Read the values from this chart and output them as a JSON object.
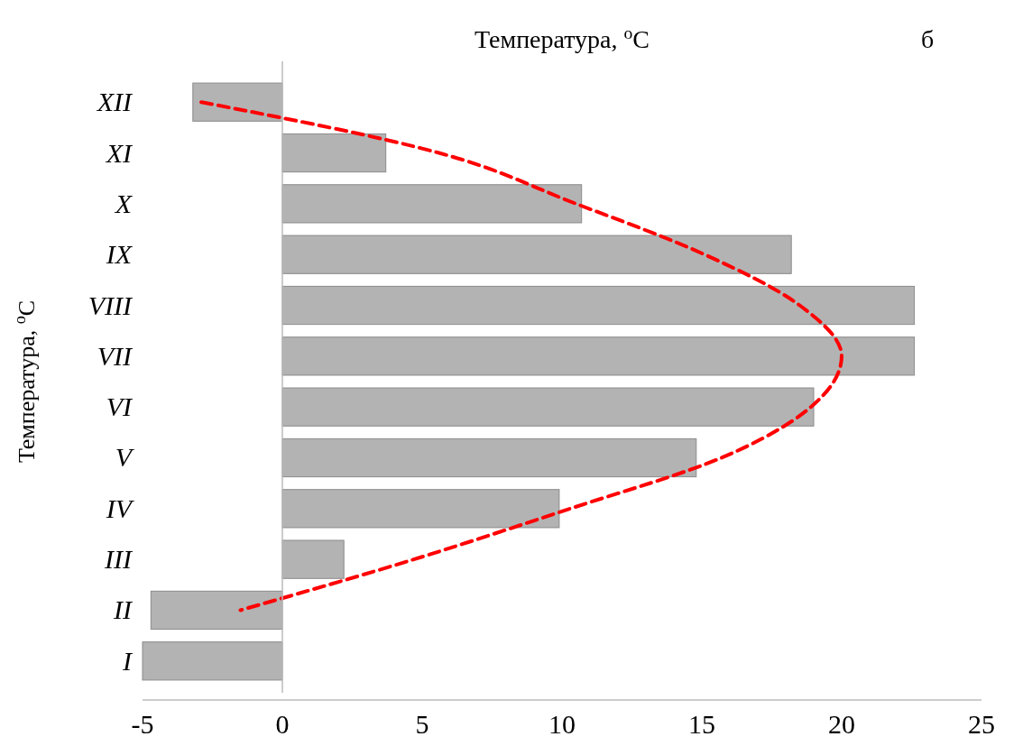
{
  "chart_data": {
    "type": "bar",
    "orientation": "horizontal",
    "title": "Температура, $^{o}$C",
    "ylabel": "Температура, $^{o}$C",
    "annotations": [
      "б"
    ],
    "categories": [
      "XII",
      "XI",
      "X",
      "IX",
      "VIII",
      "VII",
      "VI",
      "V",
      "IV",
      "III",
      "II",
      "I"
    ],
    "series": [
      {
        "color": "#b3b3b3",
        "values": [
          -3.2,
          3.7,
          10.7,
          18.2,
          22.6,
          22.6,
          19.0,
          14.8,
          9.9,
          2.2,
          -4.7,
          -5
        ]
      },
      {
        "type": "line",
        "color": "#ff0000",
        "line_style": "dashed",
        "marker": "none",
        "values": [
          -2.9,
          5.6,
          10.5,
          15.1,
          18.5,
          20,
          18.9,
          15.7,
          10.3,
          4.7,
          -1.5,
          null
        ]
      }
    ],
    "xlim": [
      -5,
      25
    ],
    "xticks": [
      -5,
      0,
      5,
      10,
      15,
      20,
      25
    ]
  }
}
